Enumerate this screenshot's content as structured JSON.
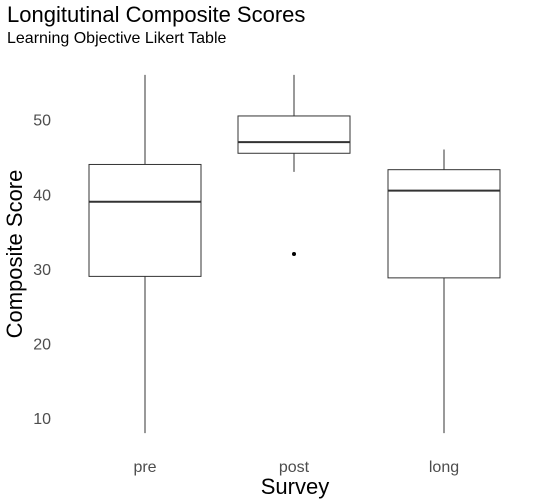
{
  "chart_data": {
    "type": "boxplot",
    "title": "Longitutinal Composite Scores",
    "subtitle": "Learning Objective Likert Table",
    "xlabel": "Survey",
    "ylabel": "Composite Score",
    "ylim": [
      6,
      58
    ],
    "yticks": [
      10,
      20,
      30,
      40,
      50
    ],
    "grid": false,
    "categories": [
      "pre",
      "post",
      "long"
    ],
    "boxes": [
      {
        "category": "pre",
        "min": 8,
        "q1": 29,
        "median": 39,
        "q3": 44,
        "max": 56,
        "outliers": []
      },
      {
        "category": "post",
        "min": 43,
        "q1": 45.5,
        "median": 47,
        "q3": 50.5,
        "max": 56,
        "outliers": [
          32
        ]
      },
      {
        "category": "long",
        "min": 8,
        "q1": 28.8,
        "median": 40.5,
        "q3": 43.3,
        "max": 46,
        "outliers": []
      }
    ]
  }
}
